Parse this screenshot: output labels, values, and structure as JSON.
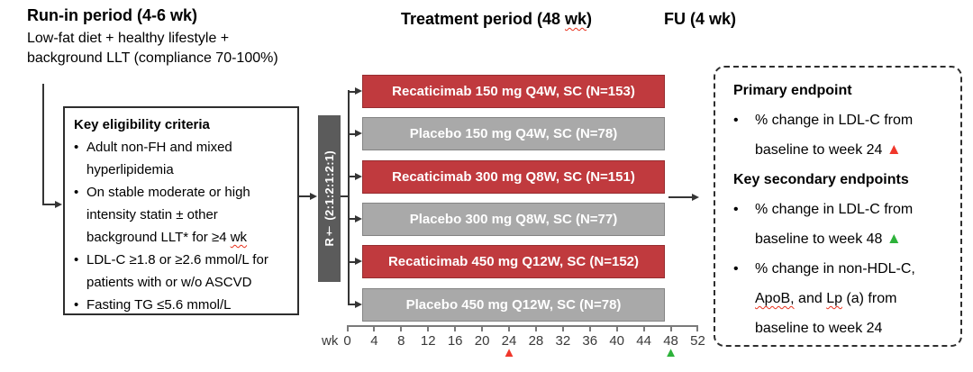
{
  "headers": {
    "run_in_title": "Run-in period (4-6 wk)",
    "run_in_sub_line1": "Low-fat diet + healthy lifestyle +",
    "run_in_sub_line2": "background LLT (compliance 70-100%)",
    "treatment_title": [
      [
        "Treatment period (48 ",
        {
          "t": "wk",
          "cls": "squiggle"
        },
        ")"
      ]
    ],
    "fu_title": "FU (4 wk)"
  },
  "eligibility": {
    "title": "Key eligibility criteria",
    "bullets": [
      {
        "lines": [
          [
            "Adult non-FH and mixed"
          ],
          [
            "hyperlipidemia"
          ]
        ]
      },
      {
        "lines": [
          [
            "On stable moderate or high"
          ],
          [
            "intensity statin ± other"
          ],
          [
            "background LLT* for ≥4 ",
            {
              "t": "wk",
              "cls": "squiggle"
            }
          ]
        ]
      },
      {
        "lines": [
          [
            "LDL-C ≥1.8 or ≥2.6 mmol/L for"
          ],
          [
            "patients with or w/o ASCVD"
          ]
        ]
      },
      {
        "lines": [
          [
            "Fasting TG ≤5.6 mmol/L"
          ]
        ]
      }
    ]
  },
  "randomization": {
    "label": "R† (2:1:2:1:2:1)"
  },
  "arms": [
    {
      "label": "Recaticimab 150 mg Q4W, SC (N=153)",
      "type": "active"
    },
    {
      "label": "Placebo 150 mg Q4W, SC (N=78)",
      "type": "placebo"
    },
    {
      "label": "Recaticimab 300 mg Q8W, SC (N=151)",
      "type": "active"
    },
    {
      "label": "Placebo 300 mg Q8W, SC (N=77)",
      "type": "placebo"
    },
    {
      "label": "Recaticimab 450 mg Q12W, SC (N=152)",
      "type": "active"
    },
    {
      "label": "Placebo 450 mg Q12W, SC (N=78)",
      "type": "placebo"
    }
  ],
  "axis": {
    "unit": "wk",
    "ticks": [
      "0",
      "4",
      "8",
      "12",
      "16",
      "20",
      "24",
      "28",
      "32",
      "36",
      "40",
      "44",
      "48",
      "52"
    ],
    "markers": [
      {
        "at": "24",
        "icon": "triangle-red"
      },
      {
        "at": "48",
        "icon": "triangle-green"
      }
    ]
  },
  "endpoint_box": {
    "blocks": [
      {
        "type": "heading",
        "text": "Primary endpoint"
      },
      {
        "type": "bullet",
        "lines": [
          [
            "% change in LDL-C from"
          ],
          [
            "baseline to week 24 ",
            {
              "icon": "triangle-red"
            }
          ]
        ]
      },
      {
        "type": "heading",
        "text": "Key secondary endpoints"
      },
      {
        "type": "bullet",
        "lines": [
          [
            "% change in LDL-C from"
          ],
          [
            "baseline to week 48 ",
            {
              "icon": "triangle-green"
            }
          ]
        ]
      },
      {
        "type": "bullet",
        "lines": [
          [
            "% change in non-HDL-C,"
          ],
          [
            {
              "t": "ApoB,",
              "cls": "squiggle"
            },
            " and ",
            {
              "t": "Lp",
              "cls": "squiggle"
            },
            " (a) from"
          ],
          [
            "baseline to week 24"
          ]
        ]
      }
    ]
  },
  "colors": {
    "recaticimab_bar": "#c03a3e",
    "placebo_bar": "#a9a9a9",
    "randomization_bar": "#5b5b5b",
    "connector": "#353535",
    "axis": "#7a7a7a",
    "triangle_red": "#f0372b",
    "triangle_green": "#2db23a",
    "squiggle_red": "#e8311c"
  }
}
